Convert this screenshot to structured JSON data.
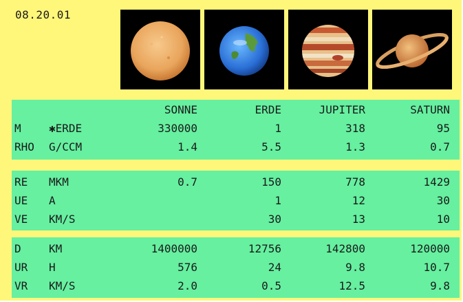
{
  "header": {
    "date": "08.20.01"
  },
  "planets": [
    {
      "name": "sun-image",
      "color": "#e8a658"
    },
    {
      "name": "earth-image",
      "color": "#2f7fe0"
    },
    {
      "name": "jupiter-image",
      "color": "#c8643c"
    },
    {
      "name": "saturn-image",
      "color": "#d08a3a"
    }
  ],
  "table1": {
    "headers": [
      "SONNE",
      "ERDE",
      "JUPITER",
      "SATURN"
    ],
    "rows": [
      {
        "key": "M",
        "unit": "✱ERDE",
        "values": [
          "330000",
          "1",
          "318",
          "95"
        ]
      },
      {
        "key": "RHO",
        "unit": "G/CCM",
        "values": [
          "1.4",
          "5.5",
          "1.3",
          "0.7"
        ]
      }
    ]
  },
  "table2": {
    "rows": [
      {
        "key": "RE",
        "unit": "MKM",
        "values": [
          "0.7",
          "150",
          "778",
          "1429"
        ]
      },
      {
        "key": "UE",
        "unit": "A",
        "values": [
          "",
          "1",
          "12",
          "30"
        ]
      },
      {
        "key": "VE",
        "unit": "KM/S",
        "values": [
          "",
          "30",
          "13",
          "10"
        ]
      }
    ]
  },
  "table3": {
    "rows": [
      {
        "key": "D",
        "unit": "KM",
        "values": [
          "1400000",
          "12756",
          "142800",
          "120000"
        ]
      },
      {
        "key": "UR",
        "unit": "H",
        "values": [
          "576",
          "24",
          "9.8",
          "10.7"
        ]
      },
      {
        "key": "VR",
        "unit": "KM/S",
        "values": [
          "2.0",
          "0.5",
          "12.5",
          "9.8"
        ]
      }
    ]
  },
  "colors": {
    "background": "#fff77a",
    "panel": "#66f0a0"
  }
}
